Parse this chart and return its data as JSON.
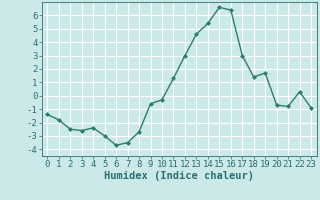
{
  "x": [
    0,
    1,
    2,
    3,
    4,
    5,
    6,
    7,
    8,
    9,
    10,
    11,
    12,
    13,
    14,
    15,
    16,
    17,
    18,
    19,
    20,
    21,
    22,
    23
  ],
  "y": [
    -1.4,
    -1.8,
    -2.5,
    -2.6,
    -2.4,
    -3.0,
    -3.7,
    -3.5,
    -2.7,
    -0.6,
    -0.3,
    1.3,
    3.0,
    4.6,
    5.4,
    6.6,
    6.4,
    3.0,
    1.4,
    1.7,
    -0.7,
    -0.8,
    0.3,
    -0.9
  ],
  "line_color": "#2d7d6e",
  "marker": "D",
  "marker_size": 2.0,
  "bg_color": "#cce9ea",
  "grid_color": "#ffffff",
  "grid_color_minor": "#e8f5f5",
  "xlabel": "Humidex (Indice chaleur)",
  "ylim": [
    -4.5,
    7.0
  ],
  "xlim": [
    -0.5,
    23.5
  ],
  "yticks": [
    -4,
    -3,
    -2,
    -1,
    0,
    1,
    2,
    3,
    4,
    5,
    6
  ],
  "xticks": [
    0,
    1,
    2,
    3,
    4,
    5,
    6,
    7,
    8,
    9,
    10,
    11,
    12,
    13,
    14,
    15,
    16,
    17,
    18,
    19,
    20,
    21,
    22,
    23
  ],
  "tick_fontsize": 6.5,
  "xlabel_fontsize": 7.5,
  "line_width": 1.0
}
